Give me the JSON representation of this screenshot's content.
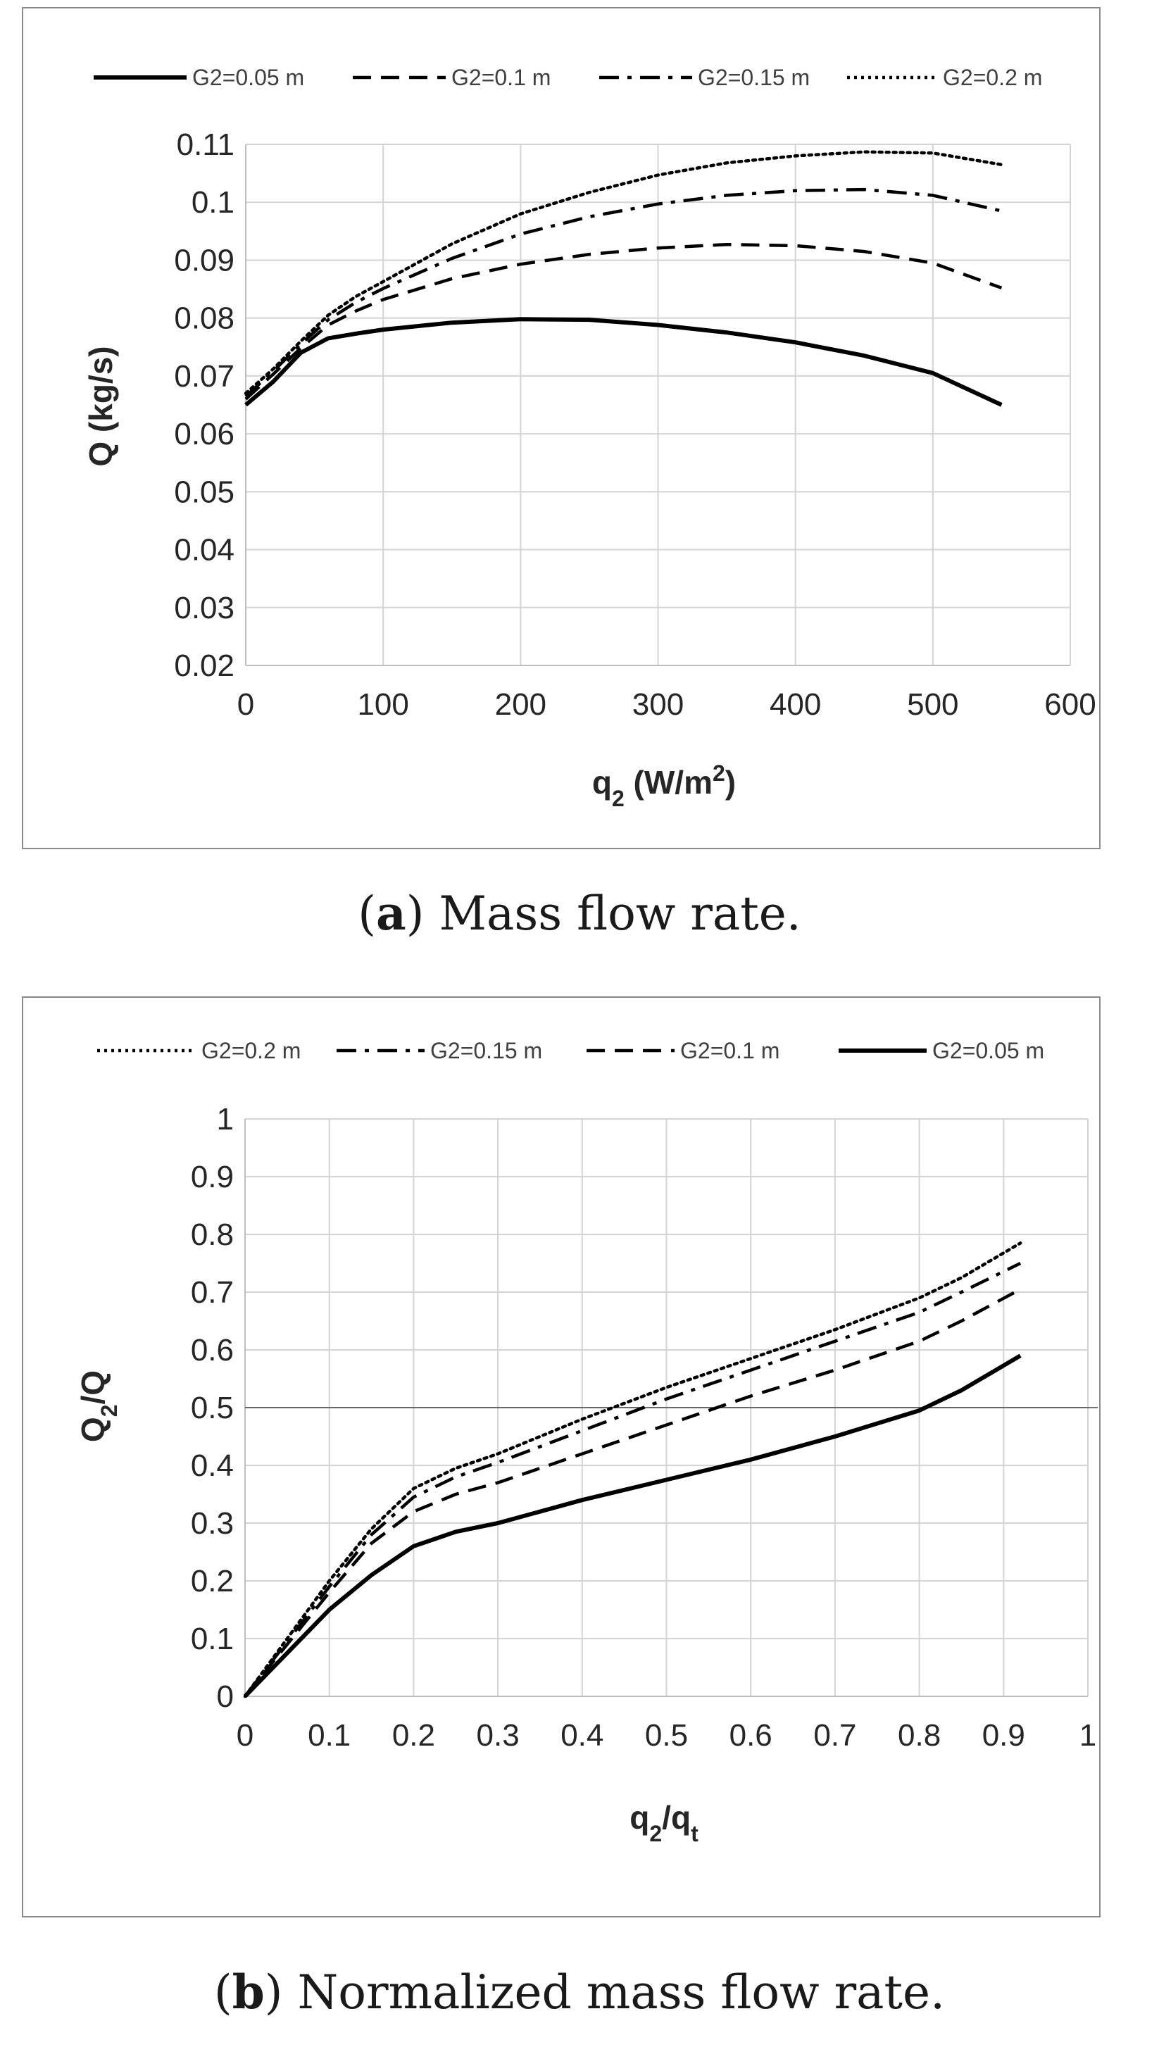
{
  "chart_data": [
    {
      "type": "line",
      "panel": "a",
      "xlabel": "q",
      "xlabel_sub": "2",
      "xlabel_rest": " (W/m",
      "xlabel_sup": "2",
      "xlabel_end": ")",
      "ylabel": "Q (kg/s)",
      "xlim": [
        0,
        600
      ],
      "ylim": [
        0.02,
        0.11
      ],
      "xticks": [
        0,
        100,
        200,
        300,
        400,
        500,
        600
      ],
      "xtick_labels": [
        "0",
        "100",
        "200",
        "300",
        "400",
        "500",
        "600"
      ],
      "yticks": [
        0.02,
        0.03,
        0.04,
        0.05,
        0.06,
        0.07,
        0.08,
        0.09,
        0.1,
        0.11
      ],
      "ytick_labels": [
        "0.02",
        "0.03",
        "0.04",
        "0.05",
        "0.06",
        "0.07",
        "0.08",
        "0.09",
        "0.1",
        "0.11"
      ],
      "grid": true,
      "legend_position": "top",
      "series": [
        {
          "name": "G2=0.05 m",
          "style": "solid",
          "x": [
            0,
            20,
            40,
            60,
            80,
            100,
            150,
            200,
            250,
            300,
            350,
            400,
            450,
            500,
            550
          ],
          "y": [
            0.065,
            0.069,
            0.074,
            0.0765,
            0.0773,
            0.078,
            0.0792,
            0.0798,
            0.0797,
            0.0788,
            0.0775,
            0.0758,
            0.0735,
            0.0705,
            0.065
          ]
        },
        {
          "name": "G2=0.1 m",
          "style": "dashed",
          "x": [
            0,
            20,
            40,
            60,
            80,
            100,
            150,
            200,
            250,
            300,
            350,
            400,
            450,
            500,
            550
          ],
          "y": [
            0.066,
            0.0703,
            0.0748,
            0.0788,
            0.0812,
            0.0832,
            0.0868,
            0.0893,
            0.091,
            0.0921,
            0.0927,
            0.0925,
            0.0915,
            0.0895,
            0.0852
          ]
        },
        {
          "name": "G2=0.15 m",
          "style": "dash-dot",
          "x": [
            0,
            20,
            40,
            60,
            80,
            100,
            150,
            200,
            250,
            300,
            350,
            400,
            450,
            500,
            550
          ],
          "y": [
            0.0665,
            0.0708,
            0.0755,
            0.0797,
            0.0827,
            0.0851,
            0.0903,
            0.0945,
            0.0975,
            0.0997,
            0.1012,
            0.102,
            0.1022,
            0.1012,
            0.0985
          ]
        },
        {
          "name": "G2=0.2 m",
          "style": "dotted",
          "x": [
            0,
            20,
            40,
            60,
            80,
            100,
            150,
            200,
            250,
            300,
            350,
            400,
            450,
            500,
            550
          ],
          "y": [
            0.067,
            0.0712,
            0.076,
            0.0805,
            0.0837,
            0.0863,
            0.0928,
            0.098,
            0.1017,
            0.1047,
            0.1068,
            0.108,
            0.1087,
            0.1085,
            0.1065
          ]
        }
      ]
    },
    {
      "type": "line",
      "panel": "b",
      "xlabel": "q",
      "xlabel_sub": "2",
      "xlabel_rest": "/q",
      "xlabel_sub2": "t",
      "ylabel": "Q",
      "ylabel_sub": "2",
      "ylabel_rest": "/Q",
      "xlim": [
        0,
        1
      ],
      "ylim": [
        0,
        1
      ],
      "xticks": [
        0,
        0.1,
        0.2,
        0.3,
        0.4,
        0.5,
        0.6,
        0.7,
        0.8,
        0.9,
        1
      ],
      "xtick_labels": [
        "0",
        "0.1",
        "0.2",
        "0.3",
        "0.4",
        "0.5",
        "0.6",
        "0.7",
        "0.8",
        "0.9",
        "1"
      ],
      "yticks": [
        0,
        0.1,
        0.2,
        0.3,
        0.4,
        0.5,
        0.6,
        0.7,
        0.8,
        0.9,
        1
      ],
      "ytick_labels": [
        "0",
        "0.1",
        "0.2",
        "0.3",
        "0.4",
        "0.5",
        "0.6",
        "0.7",
        "0.8",
        "0.9",
        "1"
      ],
      "grid": true,
      "legend_position": "top",
      "reference_line": {
        "y": 0.5
      },
      "series": [
        {
          "name": "G2=0.2 m",
          "style": "dotted",
          "x": [
            0,
            0.05,
            0.1,
            0.15,
            0.2,
            0.25,
            0.3,
            0.4,
            0.5,
            0.6,
            0.7,
            0.8,
            0.85,
            0.92
          ],
          "y": [
            0,
            0.1,
            0.2,
            0.29,
            0.36,
            0.395,
            0.42,
            0.48,
            0.535,
            0.585,
            0.635,
            0.69,
            0.725,
            0.785
          ]
        },
        {
          "name": "G2=0.15 m",
          "style": "dash-dot",
          "x": [
            0,
            0.05,
            0.1,
            0.15,
            0.2,
            0.25,
            0.3,
            0.4,
            0.5,
            0.6,
            0.7,
            0.8,
            0.85,
            0.92
          ],
          "y": [
            0,
            0.095,
            0.19,
            0.28,
            0.345,
            0.38,
            0.405,
            0.46,
            0.515,
            0.565,
            0.615,
            0.665,
            0.7,
            0.75
          ]
        },
        {
          "name": "G2=0.1 m",
          "style": "dashed",
          "x": [
            0,
            0.05,
            0.1,
            0.15,
            0.2,
            0.25,
            0.3,
            0.4,
            0.5,
            0.6,
            0.7,
            0.8,
            0.85,
            0.92
          ],
          "y": [
            0,
            0.09,
            0.18,
            0.265,
            0.32,
            0.35,
            0.37,
            0.42,
            0.47,
            0.52,
            0.565,
            0.615,
            0.65,
            0.705
          ]
        },
        {
          "name": "G2=0.05 m",
          "style": "solid",
          "x": [
            0,
            0.05,
            0.1,
            0.15,
            0.2,
            0.25,
            0.3,
            0.4,
            0.5,
            0.6,
            0.7,
            0.8,
            0.85,
            0.92
          ],
          "y": [
            0,
            0.075,
            0.15,
            0.21,
            0.26,
            0.285,
            0.3,
            0.34,
            0.375,
            0.41,
            0.45,
            0.495,
            0.53,
            0.59
          ]
        }
      ]
    }
  ],
  "captions": {
    "a_letter": "a",
    "a_text": " Mass flow rate.",
    "b_letter": "b",
    "b_text": " Normalized mass flow rate."
  }
}
